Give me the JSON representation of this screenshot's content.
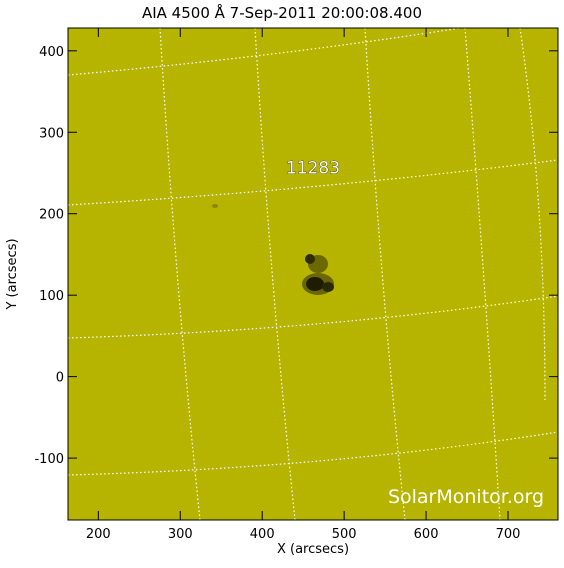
{
  "chart_data": {
    "type": "image",
    "title": "AIA 4500 Å  7-Sep-2011 20:00:08.400",
    "x_label": "X (arcsecs)",
    "y_label": "Y (arcsecs)",
    "xlim": [
      163,
      761
    ],
    "ylim": [
      -176,
      428
    ],
    "xticks": [
      200,
      300,
      400,
      500,
      600,
      700
    ],
    "yticks": [
      -100,
      0,
      100,
      200,
      300,
      400
    ],
    "color": "#b7b400",
    "annotations": [
      {
        "text": "11283",
        "x": 462,
        "y": 257
      }
    ],
    "watermark": "SolarMonitor.org"
  }
}
